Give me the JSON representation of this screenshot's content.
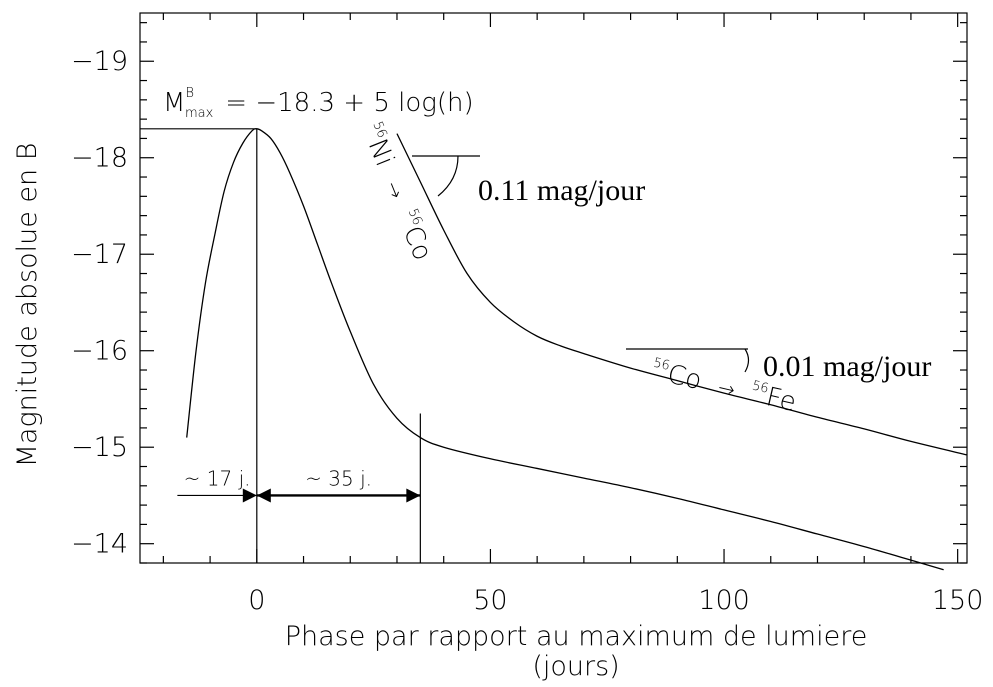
{
  "chart_data": {
    "type": "line",
    "title": "",
    "xlabel": "Phase par rapport au maximum de lumiere",
    "xlabel_unit": "(jours)",
    "ylabel": "Magnitude absolue en B",
    "xlim": [
      -25,
      152
    ],
    "ylim": [
      -13.8,
      -19.5
    ],
    "y_inverted": true,
    "grid": false,
    "x_ticks": [
      {
        "value": 0,
        "label": "0"
      },
      {
        "value": 50,
        "label": "50"
      },
      {
        "value": 100,
        "label": "100"
      },
      {
        "value": 150,
        "label": "150"
      }
    ],
    "y_ticks": [
      {
        "value": -14,
        "label": "−14"
      },
      {
        "value": -15,
        "label": "−15"
      },
      {
        "value": -16,
        "label": "−16"
      },
      {
        "value": -17,
        "label": "−17"
      },
      {
        "value": -18,
        "label": "−18"
      },
      {
        "value": -19,
        "label": "−19"
      }
    ],
    "series": [
      {
        "x": [
          -15,
          -13,
          -11,
          -9,
          -7,
          -5,
          -3,
          -1,
          0,
          1,
          3,
          5,
          7,
          10,
          13,
          16,
          20,
          25,
          30,
          35,
          40,
          50,
          60,
          70,
          80,
          90,
          100,
          110,
          120,
          130,
          140,
          147
        ],
        "y": [
          -15.1,
          -16.0,
          -16.7,
          -17.2,
          -17.65,
          -17.95,
          -18.15,
          -18.28,
          -18.3,
          -18.28,
          -18.2,
          -18.05,
          -17.85,
          -17.5,
          -17.1,
          -16.7,
          -16.2,
          -15.65,
          -15.3,
          -15.1,
          -15.0,
          -14.88,
          -14.78,
          -14.68,
          -14.58,
          -14.47,
          -14.35,
          -14.23,
          -14.1,
          -13.97,
          -13.83,
          -13.73
        ]
      },
      {
        "x": [
          30,
          35,
          40,
          45,
          50,
          55,
          60,
          65,
          70,
          80,
          90,
          100,
          110,
          120,
          130,
          140,
          152
        ],
        "y": [
          -18.25,
          -17.75,
          -17.25,
          -16.8,
          -16.5,
          -16.3,
          -16.15,
          -16.05,
          -15.97,
          -15.82,
          -15.69,
          -15.56,
          -15.44,
          -15.31,
          -15.19,
          -15.06,
          -14.92
        ]
      }
    ],
    "reference_lines": {
      "peak_y": -18.3,
      "peak_x": 0,
      "decline_x": 35,
      "decline_y": -15.35
    },
    "spans": [
      {
        "label": "~ 17 j.",
        "x_start": -17,
        "x_end": 0,
        "y": -14.5
      },
      {
        "label": "~ 35 j.",
        "x_start": 0,
        "x_end": 35,
        "y": -14.5
      }
    ],
    "annotations": {
      "mmax_letter": "M",
      "mmax_sup": "B",
      "mmax_sub": "max",
      "mmax_rest": "= −18.3 + 5 log(h)",
      "ni_mass": "56",
      "ni_symbol": "Ni",
      "co_mass": "56",
      "co_symbol": "Co",
      "arrow": "→",
      "slope1": "0.11 mag/jour",
      "co2_mass": "56",
      "co2_symbol": "Co",
      "fe_mass": "56",
      "fe_symbol": "Fe",
      "slope2": "0.01 mag/jour"
    }
  }
}
